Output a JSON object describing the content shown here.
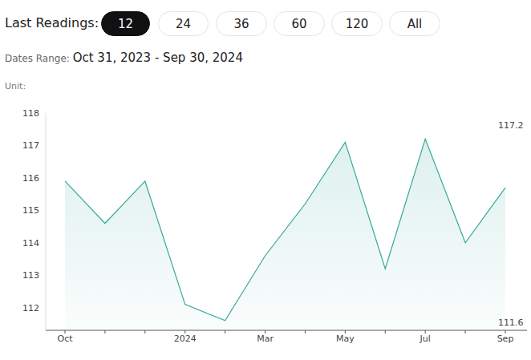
{
  "header": {
    "label": "Last Readings:",
    "buttons": [
      "12",
      "24",
      "36",
      "60",
      "120",
      "All"
    ],
    "selected": "12",
    "dates_label": "Dates Range:",
    "dates": "Oct 31, 2023 - Sep 30, 2024",
    "unit_label": "Unit:"
  },
  "chart_data": {
    "type": "area",
    "categories": [
      "Oct",
      null,
      null,
      "2024",
      null,
      "Mar",
      null,
      "May",
      null,
      "Jul",
      null,
      "Sep"
    ],
    "values": [
      115.9,
      114.6,
      115.9,
      112.1,
      111.6,
      113.6,
      115.2,
      117.1,
      113.2,
      117.2,
      114.0,
      115.7
    ],
    "color": "#35a898",
    "ylim": [
      111.3,
      118
    ],
    "yticks": [
      112,
      113,
      114,
      115,
      116,
      117,
      118
    ],
    "annotations": [
      "117.2",
      "111.6"
    ],
    "grid": false
  }
}
